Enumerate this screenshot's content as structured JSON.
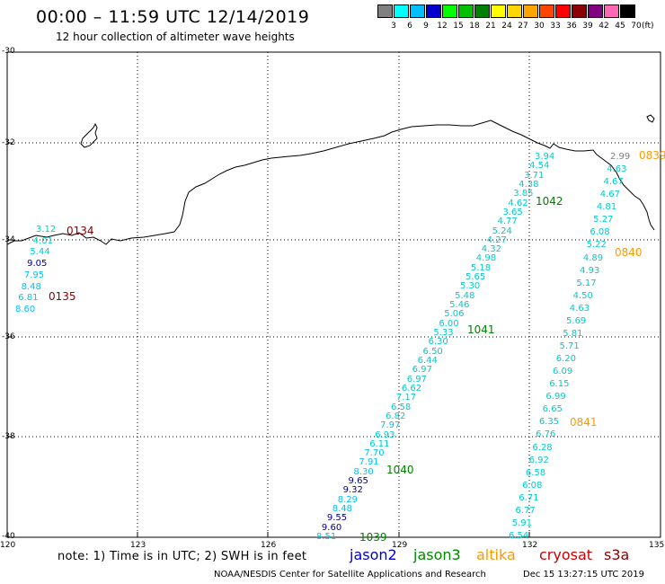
{
  "title": "00:00 – 11:59 UTC 12/14/2019",
  "subtitle": "12 hour collection of altimeter wave heights",
  "colorbar": {
    "labels": [
      "3",
      "6",
      "9",
      "12",
      "15",
      "18",
      "21",
      "24",
      "27",
      "30",
      "33",
      "36",
      "39",
      "42",
      "45",
      "70"
    ],
    "unit": "(ft)",
    "colors": [
      "#808080",
      "#00ffff",
      "#00bfff",
      "#0000cd",
      "#00ff00",
      "#00c000",
      "#008000",
      "#ffff00",
      "#ffd700",
      "#ffa500",
      "#ff4500",
      "#ff0000",
      "#8b0000",
      "#800080",
      "#ff69b4",
      "#000000"
    ]
  },
  "latitude_labels": [
    "-30",
    "-32",
    "-34",
    "-36",
    "-38",
    "-40"
  ],
  "longitude_labels": [
    "120",
    "123",
    "126",
    "129",
    "132",
    "135"
  ],
  "note": "note:  1) Time is in UTC;  2) SWH is in feet",
  "legend": [
    {
      "label": "jason2",
      "color": "#0000cc"
    },
    {
      "label": "jason3",
      "color": "#008800"
    },
    {
      "label": "altika",
      "color": "#ff9900"
    },
    {
      "label": "cryosat",
      "color": "#cc0000"
    },
    {
      "label": "s3a",
      "color": "#8b0000"
    }
  ],
  "footer_left": "NOAA/NESDIS Center for Satellite Applications and Research",
  "footer_right": "Dec 15 13:27:15 UTC 2019",
  "passes": [
    {
      "label": "0134",
      "color": "#8b0000"
    },
    {
      "label": "0135",
      "color": "#8b0000"
    },
    {
      "label": "1042",
      "color": "#008000"
    },
    {
      "label": "1041",
      "color": "#008000"
    },
    {
      "label": "1040",
      "color": "#008000"
    },
    {
      "label": "1039",
      "color": "#008000"
    },
    {
      "label": "0839",
      "color": "#ff9900"
    },
    {
      "label": "0840",
      "color": "#ff9900"
    },
    {
      "label": "0841",
      "color": "#ff9900"
    }
  ],
  "tracks": {
    "west": [
      {
        "v": "3.12",
        "c": "#00cccc"
      },
      {
        "v": "4.01",
        "c": "#00cccc"
      },
      {
        "v": "5.44",
        "c": "#00cccc"
      },
      {
        "v": "9.05",
        "c": "#00008b"
      },
      {
        "v": "7.95",
        "c": "#00bfff"
      },
      {
        "v": "8.48",
        "c": "#00bfff"
      },
      {
        "v": "6.81",
        "c": "#00cccc"
      },
      {
        "v": "8.60",
        "c": "#00bfff"
      }
    ],
    "middle": [
      {
        "v": "3.94",
        "c": "#00cccc"
      },
      {
        "v": "4.54",
        "c": "#00cccc"
      },
      {
        "v": "3.71",
        "c": "#00cccc"
      },
      {
        "v": "4.38",
        "c": "#00cccc"
      },
      {
        "v": "3.85",
        "c": "#00cccc"
      },
      {
        "v": "4.62",
        "c": "#00cccc"
      },
      {
        "v": "3.65",
        "c": "#00cccc"
      },
      {
        "v": "4.77",
        "c": "#00cccc"
      },
      {
        "v": "5.24",
        "c": "#00cccc"
      },
      {
        "v": "4.27",
        "c": "#00cccc"
      },
      {
        "v": "4.32",
        "c": "#00cccc"
      },
      {
        "v": "4.98",
        "c": "#00cccc"
      },
      {
        "v": "5.18",
        "c": "#00cccc"
      },
      {
        "v": "5.65",
        "c": "#00cccc"
      },
      {
        "v": "5.30",
        "c": "#00cccc"
      },
      {
        "v": "5.48",
        "c": "#00cccc"
      },
      {
        "v": "5.46",
        "c": "#00cccc"
      },
      {
        "v": "5.06",
        "c": "#00cccc"
      },
      {
        "v": "6.00",
        "c": "#00cccc"
      },
      {
        "v": "5.33",
        "c": "#00cccc"
      },
      {
        "v": "6.30",
        "c": "#00cccc"
      },
      {
        "v": "6.50",
        "c": "#00cccc"
      },
      {
        "v": "6.44",
        "c": "#00cccc"
      },
      {
        "v": "6.97",
        "c": "#00cccc"
      },
      {
        "v": "6.97",
        "c": "#00cccc"
      },
      {
        "v": "6.62",
        "c": "#00cccc"
      },
      {
        "v": "7.17",
        "c": "#00cccc"
      },
      {
        "v": "6.58",
        "c": "#00cccc"
      },
      {
        "v": "6.82",
        "c": "#00cccc"
      },
      {
        "v": "7.97",
        "c": "#00bfff"
      },
      {
        "v": "6.93",
        "c": "#00cccc"
      },
      {
        "v": "6.11",
        "c": "#00cccc"
      },
      {
        "v": "7.70",
        "c": "#00bfff"
      },
      {
        "v": "7.91",
        "c": "#00bfff"
      },
      {
        "v": "8.30",
        "c": "#00bfff"
      },
      {
        "v": "9.65",
        "c": "#00008b"
      },
      {
        "v": "9.32",
        "c": "#00008b"
      },
      {
        "v": "8.29",
        "c": "#00bfff"
      },
      {
        "v": "8.48",
        "c": "#00bfff"
      },
      {
        "v": "9.55",
        "c": "#00008b"
      },
      {
        "v": "9.60",
        "c": "#00008b"
      },
      {
        "v": "8.51",
        "c": "#00bfff"
      }
    ],
    "east": [
      {
        "v": "2.99",
        "c": "#808080"
      },
      {
        "v": "4.63",
        "c": "#00cccc"
      },
      {
        "v": "4.67",
        "c": "#00cccc"
      },
      {
        "v": "4.67",
        "c": "#00cccc"
      },
      {
        "v": "4.81",
        "c": "#00cccc"
      },
      {
        "v": "5.27",
        "c": "#00cccc"
      },
      {
        "v": "6.08",
        "c": "#00cccc"
      },
      {
        "v": "5.22",
        "c": "#00cccc"
      },
      {
        "v": "4.89",
        "c": "#00cccc"
      },
      {
        "v": "4.93",
        "c": "#00cccc"
      },
      {
        "v": "5.17",
        "c": "#00cccc"
      },
      {
        "v": "4.50",
        "c": "#00cccc"
      },
      {
        "v": "4.63",
        "c": "#00cccc"
      },
      {
        "v": "5.69",
        "c": "#00cccc"
      },
      {
        "v": "5.81",
        "c": "#00cccc"
      },
      {
        "v": "5.71",
        "c": "#00cccc"
      },
      {
        "v": "6.20",
        "c": "#00cccc"
      },
      {
        "v": "6.09",
        "c": "#00cccc"
      },
      {
        "v": "6.15",
        "c": "#00cccc"
      },
      {
        "v": "6.99",
        "c": "#00cccc"
      },
      {
        "v": "6.65",
        "c": "#00cccc"
      },
      {
        "v": "6.35",
        "c": "#00cccc"
      },
      {
        "v": "6.76",
        "c": "#00cccc"
      },
      {
        "v": "6.28",
        "c": "#00cccc"
      },
      {
        "v": "6.92",
        "c": "#00cccc"
      },
      {
        "v": "6.58",
        "c": "#00cccc"
      },
      {
        "v": "6.08",
        "c": "#00cccc"
      },
      {
        "v": "6.71",
        "c": "#00cccc"
      },
      {
        "v": "6.77",
        "c": "#00cccc"
      },
      {
        "v": "5.91",
        "c": "#00cccc"
      },
      {
        "v": "6.54",
        "c": "#00cccc"
      }
    ]
  }
}
